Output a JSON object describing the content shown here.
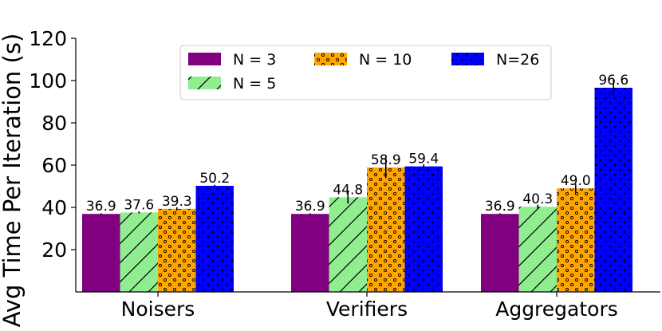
{
  "chart_data": {
    "type": "bar",
    "title": "",
    "xlabel": "",
    "ylabel": "Avg Time Per Iteration (s)",
    "categories": [
      "Noisers",
      "Verifiers",
      "Aggregators"
    ],
    "ylim": [
      0,
      120
    ],
    "yticks": [
      20,
      40,
      60,
      80,
      100,
      120
    ],
    "grid": false,
    "legend_position": "top-center",
    "series": [
      {
        "name": "N = 3",
        "color": "#800080",
        "pattern": "solid",
        "values": [
          36.9,
          36.9,
          36.9
        ],
        "value_labels": [
          "36.9",
          "36.9",
          "36.9"
        ],
        "errors": [
          0.3,
          0.3,
          0.3
        ]
      },
      {
        "name": "N = 5",
        "color": "#90ee90",
        "pattern": "diagonal-hatch",
        "values": [
          37.6,
          44.8,
          40.3
        ],
        "value_labels": [
          "37.6",
          "44.8",
          "40.3"
        ],
        "errors": [
          0.5,
          3.0,
          1.0
        ]
      },
      {
        "name": "N = 10",
        "color": "#ffa500",
        "pattern": "small-circles",
        "values": [
          39.3,
          58.9,
          49.0
        ],
        "value_labels": [
          "39.3",
          "58.9",
          "49.0"
        ],
        "errors": [
          0.8,
          5.0,
          2.0
        ]
      },
      {
        "name": "N=26",
        "color": "#0000ff",
        "pattern": "dots",
        "values": [
          50.2,
          59.4,
          96.6
        ],
        "value_labels": [
          "50.2",
          "59.4",
          "96.6"
        ],
        "errors": [
          0.5,
          1.0,
          4.0
        ]
      }
    ]
  }
}
